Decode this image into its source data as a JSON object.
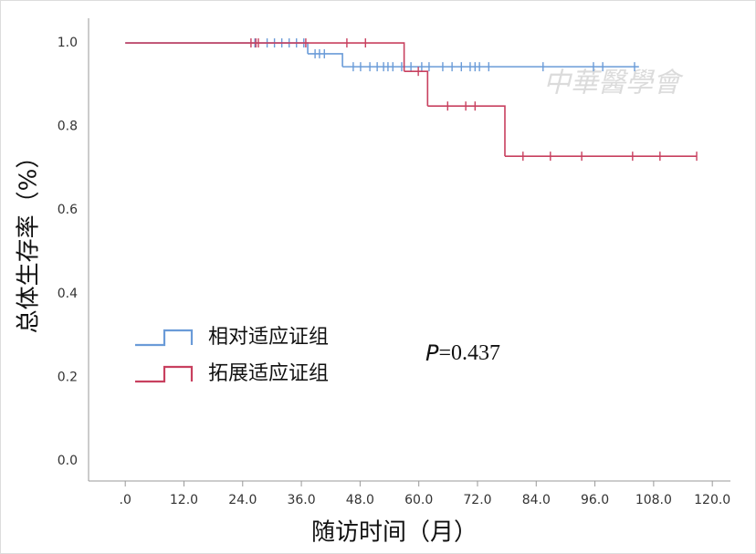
{
  "chart_data": {
    "type": "survival",
    "y_label": "总体生存率（%）",
    "x_label": "随访时间（月）",
    "annotation_p": "P",
    "annotation_value": "=0.437",
    "watermark": "中華醫學會",
    "xlim": [
      -7.5,
      123.7
    ],
    "ylim": [
      -0.048,
      1.059
    ],
    "xticks": [
      {
        "value": 0,
        "label": ".0"
      },
      {
        "value": 12,
        "label": "12.0"
      },
      {
        "value": 24,
        "label": "24.0"
      },
      {
        "value": 36,
        "label": "36.0"
      },
      {
        "value": 48,
        "label": "48.0"
      },
      {
        "value": 60,
        "label": "60.0"
      },
      {
        "value": 72,
        "label": "72.0"
      },
      {
        "value": 84,
        "label": "84.0"
      },
      {
        "value": 96,
        "label": "96.0"
      },
      {
        "value": 108,
        "label": "108.0"
      },
      {
        "value": 120,
        "label": "120.0"
      }
    ],
    "yticks": [
      {
        "value": 0,
        "label": "0.0"
      },
      {
        "value": 0.2,
        "label": "0.2"
      },
      {
        "value": 0.4,
        "label": "0.4"
      },
      {
        "value": 0.6,
        "label": "0.6"
      },
      {
        "value": 0.8,
        "label": "0.8"
      },
      {
        "value": 1,
        "label": "1.0"
      }
    ],
    "series": [
      {
        "name": "相对适应证组",
        "color": "#6a9bd8",
        "x": [
          0,
          37.3,
          44.4,
          105.0
        ],
        "values": [
          1.0,
          0.974,
          0.943,
          0.943
        ],
        "censored": {
          "x": [
            26.5,
            29,
            30.5,
            32,
            33.5,
            35,
            36.5,
            38.8,
            39.7,
            40.7,
            46.6,
            48.1,
            50,
            51.5,
            52.8,
            53.7,
            54.7,
            56.5,
            58.4,
            60.6,
            62.1,
            64.9,
            66.8,
            68.7,
            70.5,
            71.5,
            72.4,
            74.3,
            85.4,
            95.7,
            97.6,
            104.1
          ],
          "values": [
            1.0,
            1.0,
            1.0,
            1.0,
            1.0,
            1.0,
            1.0,
            0.974,
            0.974,
            0.974,
            0.943,
            0.943,
            0.943,
            0.943,
            0.943,
            0.943,
            0.943,
            0.943,
            0.943,
            0.943,
            0.943,
            0.943,
            0.943,
            0.943,
            0.943,
            0.943,
            0.943,
            0.943,
            0.943,
            0.943,
            0.943,
            0.943
          ]
        }
      },
      {
        "name": "拓展适应证组",
        "color": "#c8405f",
        "x": [
          0,
          57.0,
          61.8,
          77.6,
          116.8
        ],
        "values": [
          1.0,
          0.932,
          0.849,
          0.729,
          0.729
        ],
        "censored": {
          "x": [
            25.7,
            26.7,
            27.2,
            36.9,
            45.3,
            49.1,
            59.9,
            65.9,
            69.6,
            71.5,
            81.3,
            86.9,
            93.3,
            103.7,
            109.3,
            116.8
          ],
          "values": [
            1.0,
            1.0,
            1.0,
            1.0,
            1.0,
            1.0,
            0.932,
            0.849,
            0.849,
            0.849,
            0.729,
            0.729,
            0.729,
            0.729,
            0.729,
            0.729
          ]
        }
      }
    ]
  }
}
